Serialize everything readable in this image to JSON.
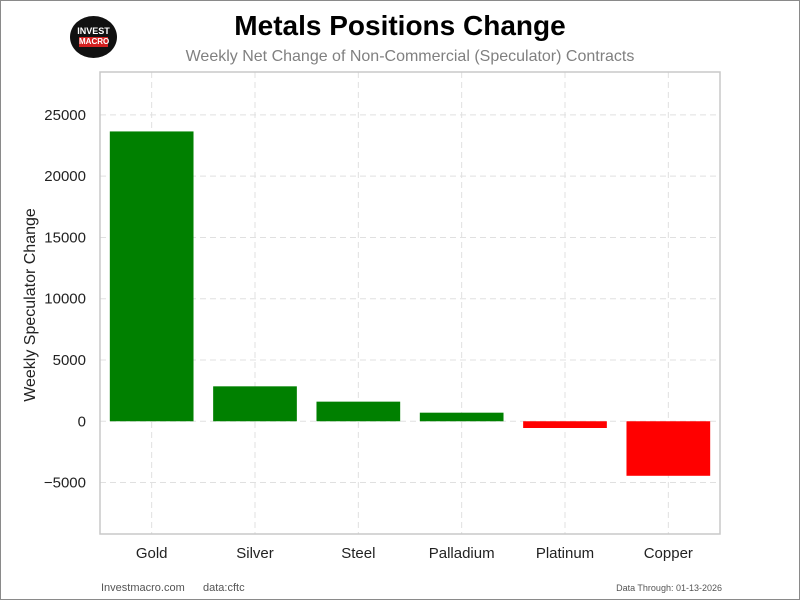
{
  "header": {
    "logo_line1": "INVEST",
    "logo_line2": "MACRO"
  },
  "footer": {
    "site": "Investmacro.com",
    "source": "data:cftc",
    "data_through": "Data Through: 01-13-2026"
  },
  "colors": {
    "positive": "#008000",
    "negative": "#ff0000",
    "grid": "#e0e0e0",
    "axis": "#c8c8c8"
  },
  "chart_data": {
    "type": "bar",
    "title": "Metals Positions Change",
    "subtitle": "Weekly Net Change of Non-Commercial (Speculator) Contracts",
    "xlabel": "",
    "ylabel": "Weekly Speculator Change",
    "categories": [
      "Gold",
      "Silver",
      "Steel",
      "Palladium",
      "Platinum",
      "Copper"
    ],
    "values": [
      23650,
      2850,
      1600,
      700,
      -550,
      -4450
    ],
    "ylim": [
      -9200,
      28500
    ],
    "yticks": [
      -5000,
      0,
      5000,
      10000,
      15000,
      20000,
      25000
    ],
    "ytick_labels": [
      "−5000",
      "0",
      "5000",
      "10000",
      "15000",
      "20000",
      "25000"
    ],
    "grid": true
  }
}
